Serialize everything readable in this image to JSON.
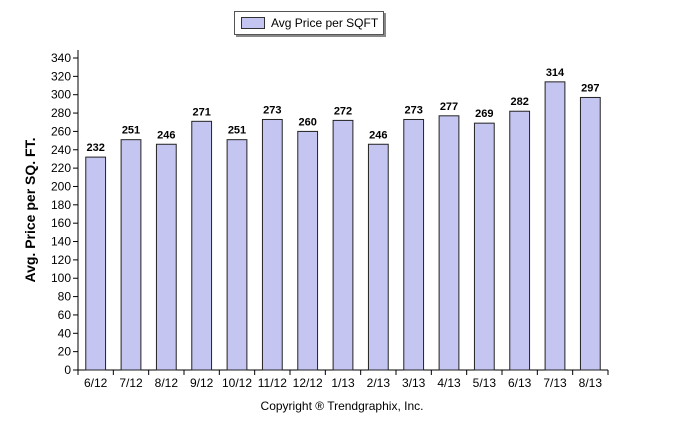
{
  "chart_data": {
    "type": "bar",
    "categories": [
      "6/12",
      "7/12",
      "8/12",
      "9/12",
      "10/12",
      "11/12",
      "12/12",
      "1/13",
      "2/13",
      "3/13",
      "4/13",
      "5/13",
      "6/13",
      "7/13",
      "8/13"
    ],
    "series": [
      {
        "name": "Avg Price per SQFT",
        "values": [
          232,
          251,
          246,
          271,
          251,
          273,
          260,
          272,
          246,
          273,
          277,
          269,
          282,
          314,
          297
        ]
      }
    ],
    "title": "",
    "xlabel": "",
    "ylabel": "Avg. Price per SQ. FT.",
    "ylim": [
      0,
      340
    ],
    "yticks": [
      0,
      20,
      40,
      60,
      80,
      100,
      120,
      140,
      160,
      180,
      200,
      220,
      240,
      260,
      280,
      300,
      320,
      340
    ],
    "grid": false,
    "legend": "top-center",
    "bar_color": "#c5c5f2",
    "bar_stroke": "#222222"
  },
  "footer": "Copyright ® Trendgraphix, Inc."
}
